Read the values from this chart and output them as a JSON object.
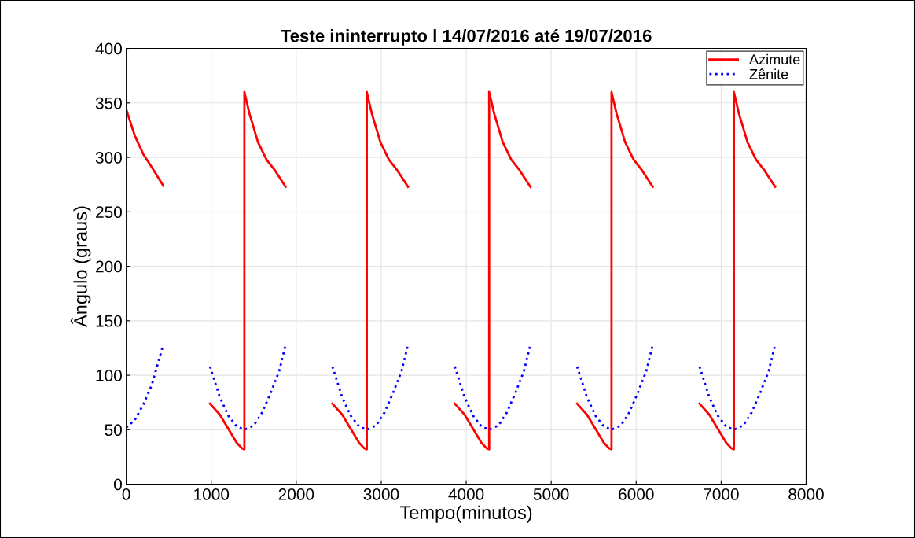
{
  "chart_data": {
    "type": "line",
    "title": "Teste ininterrupto l 14/07/2016 até 19/07/2016",
    "xlabel": "Tempo(minutos)",
    "ylabel": "Ângulo (graus)",
    "xlim": [
      0,
      8000
    ],
    "xticks": [
      0,
      1000,
      2000,
      3000,
      4000,
      5000,
      6000,
      7000,
      8000
    ],
    "ylim": [
      0,
      400
    ],
    "yticks": [
      0,
      50,
      100,
      150,
      200,
      250,
      300,
      350,
      400
    ],
    "grid": true,
    "legend": "top right",
    "series": [
      {
        "name": "Azimute",
        "color": "#ff0000",
        "line_style": "solid",
        "x": [
          0,
          100,
          200,
          300,
          435,
          700,
          985,
          1100,
          1200,
          1300,
          1360,
          1390,
          1390,
          1450,
          1550,
          1650,
          1750,
          1875,
          2150,
          2425,
          2540,
          2640,
          2740,
          2800,
          2830,
          2830,
          2890,
          2990,
          3090,
          3190,
          3315,
          3590,
          3865,
          3980,
          4080,
          4180,
          4240,
          4270,
          4270,
          4330,
          4430,
          4530,
          4630,
          4755,
          5030,
          5305,
          5420,
          5520,
          5620,
          5680,
          5710,
          5710,
          5770,
          5870,
          5970,
          6070,
          6195,
          6470,
          6745,
          6860,
          6960,
          7060,
          7120,
          7150,
          7150,
          7210,
          7310,
          7410,
          7510,
          7635
        ],
        "values": [
          344,
          320,
          303,
          291,
          274,
          null,
          74,
          64,
          51,
          38,
          33,
          32,
          360,
          340,
          314,
          298,
          288,
          273,
          null,
          74,
          64,
          51,
          38,
          33,
          32,
          360,
          340,
          314,
          298,
          288,
          273,
          null,
          74,
          64,
          51,
          38,
          33,
          32,
          360,
          340,
          314,
          298,
          288,
          273,
          null,
          74,
          64,
          51,
          38,
          33,
          32,
          360,
          340,
          314,
          298,
          288,
          273,
          null,
          74,
          64,
          51,
          38,
          33,
          32,
          360,
          340,
          314,
          298,
          288,
          273
        ]
      },
      {
        "name": "Zênite",
        "color": "#0000ff",
        "line_style": "dotted",
        "x": [
          0,
          100,
          200,
          300,
          435,
          700,
          985,
          1100,
          1200,
          1300,
          1390,
          1500,
          1600,
          1700,
          1800,
          1875,
          2150,
          2425,
          2540,
          2640,
          2740,
          2830,
          2940,
          3040,
          3140,
          3240,
          3315,
          3590,
          3865,
          3980,
          4080,
          4180,
          4270,
          4380,
          4480,
          4580,
          4680,
          4755,
          5030,
          5305,
          5420,
          5520,
          5620,
          5710,
          5820,
          5920,
          6020,
          6120,
          6195,
          6470,
          6745,
          6860,
          6960,
          7060,
          7150,
          7260,
          7360,
          7460,
          7560,
          7635
        ],
        "values": [
          52,
          59,
          73,
          91,
          128,
          null,
          108,
          80,
          63,
          53,
          50,
          54,
          66,
          84,
          104,
          128,
          null,
          108,
          80,
          63,
          53,
          50,
          54,
          66,
          84,
          104,
          128,
          null,
          108,
          80,
          63,
          53,
          50,
          54,
          66,
          84,
          104,
          128,
          null,
          108,
          80,
          63,
          53,
          50,
          54,
          66,
          84,
          104,
          128,
          null,
          108,
          80,
          63,
          53,
          50,
          54,
          66,
          84,
          104,
          128
        ]
      }
    ]
  }
}
